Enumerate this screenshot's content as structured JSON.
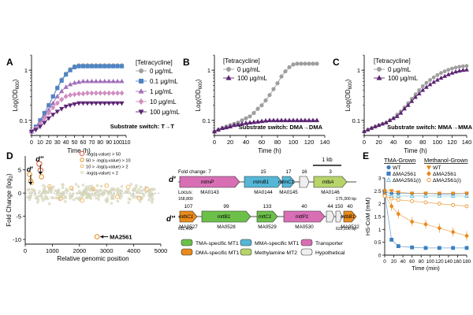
{
  "panel_letters": {
    "A": "A",
    "B": "B",
    "C": "C",
    "D": "D",
    "E": "E",
    "dp": "d′",
    "dpp": "d′′"
  },
  "colors": {
    "tma": "#3b7fbf",
    "dma": "#e88a1c",
    "mma": "#56b6d6",
    "transporter": "#d86fb4",
    "mt2": "#b6d46a",
    "hypo": "#eeeeee",
    "green": "#6cc04a",
    "gray": "#999999",
    "purple": "#5b2573",
    "p1": "#aaaaaa",
    "p2": "#4f84c4",
    "p3": "#a070b8",
    "p4": "#d08fc0"
  },
  "chart_data": [
    {
      "id": "A",
      "type": "line",
      "title": "Substrate switch: T→T",
      "xlabel": "Time (h)",
      "ylabel": "Log(OD600)",
      "xlim": [
        0,
        110
      ],
      "ylim_log": [
        0.05,
        2
      ],
      "xticks": [
        0,
        10,
        20,
        30,
        40,
        50,
        60,
        70,
        80,
        90,
        100,
        110
      ],
      "yticks": [
        {
          "v": 0.1,
          "label": "0.1"
        },
        {
          "v": 1,
          "label": "1"
        }
      ],
      "legend_title": "[Tetracycline]",
      "series": [
        {
          "name": "0 μg/mL",
          "marker": "circle",
          "color": "#9e9e9e",
          "x": [
            0,
            5,
            10,
            15,
            20,
            25,
            30,
            35,
            40,
            45,
            50,
            55,
            60,
            65,
            70,
            75,
            80,
            85,
            90,
            95,
            100,
            105
          ],
          "y": [
            0.06,
            0.075,
            0.1,
            0.14,
            0.2,
            0.3,
            0.45,
            0.65,
            0.85,
            1.05,
            1.2,
            1.25,
            1.25,
            1.25,
            1.25,
            1.25,
            1.25,
            1.25,
            1.25,
            1.25,
            1.25,
            1.25
          ]
        },
        {
          "name": "0.1 μg/mL",
          "marker": "square",
          "color": "#4f84c4",
          "x": [
            0,
            5,
            10,
            15,
            20,
            25,
            30,
            35,
            40,
            45,
            50,
            55,
            60,
            65,
            70,
            75,
            80,
            85,
            90,
            95,
            100,
            105
          ],
          "y": [
            0.06,
            0.075,
            0.1,
            0.14,
            0.2,
            0.3,
            0.44,
            0.62,
            0.82,
            1.0,
            1.15,
            1.2,
            1.2,
            1.2,
            1.2,
            1.2,
            1.2,
            1.2,
            1.2,
            1.2,
            1.2,
            1.2
          ]
        },
        {
          "name": "1 μg/mL",
          "marker": "triangle",
          "color": "#a070b8",
          "x": [
            0,
            5,
            10,
            15,
            20,
            25,
            30,
            35,
            40,
            45,
            50,
            55,
            60,
            65,
            70,
            75,
            80,
            85,
            90,
            95,
            100,
            105
          ],
          "y": [
            0.06,
            0.07,
            0.09,
            0.12,
            0.16,
            0.22,
            0.3,
            0.38,
            0.46,
            0.52,
            0.56,
            0.58,
            0.6,
            0.6,
            0.6,
            0.6,
            0.6,
            0.6,
            0.6,
            0.6,
            0.6,
            0.6
          ]
        },
        {
          "name": "10 μg/mL",
          "marker": "diamond",
          "color": "#d08fc0",
          "x": [
            0,
            5,
            10,
            15,
            20,
            25,
            30,
            35,
            40,
            45,
            50,
            55,
            60,
            65,
            70,
            75,
            80,
            85,
            90,
            95,
            100,
            105
          ],
          "y": [
            0.06,
            0.07,
            0.085,
            0.11,
            0.14,
            0.18,
            0.22,
            0.26,
            0.3,
            0.32,
            0.33,
            0.34,
            0.34,
            0.35,
            0.35,
            0.35,
            0.35,
            0.35,
            0.35,
            0.35,
            0.35,
            0.35
          ]
        },
        {
          "name": "100 μg/mL",
          "marker": "invtriangle",
          "color": "#5b2573",
          "x": [
            0,
            5,
            10,
            15,
            20,
            25,
            30,
            35,
            40,
            45,
            50,
            55,
            60,
            65,
            70,
            75,
            80,
            85,
            90,
            95,
            100,
            105
          ],
          "y": [
            0.06,
            0.065,
            0.075,
            0.09,
            0.11,
            0.13,
            0.15,
            0.17,
            0.19,
            0.2,
            0.21,
            0.22,
            0.22,
            0.22,
            0.22,
            0.22,
            0.22,
            0.22,
            0.22,
            0.22,
            0.22,
            0.22
          ]
        }
      ]
    },
    {
      "id": "B",
      "type": "line",
      "title": "Substrate switch: DMA→DMA",
      "xlabel": "Time (h)",
      "ylabel": "Log(OD600)",
      "xlim": [
        0,
        140
      ],
      "ylim_log": [
        0.05,
        2
      ],
      "xticks": [
        0,
        20,
        40,
        60,
        80,
        100,
        120,
        140
      ],
      "yticks": [
        {
          "v": 0.1,
          "label": "0.1"
        },
        {
          "v": 1,
          "label": "1"
        }
      ],
      "legend_title": "[Tetracycline]",
      "series": [
        {
          "name": "0 μg/mL",
          "marker": "circle",
          "color": "#9e9e9e",
          "x": [
            0,
            5,
            10,
            15,
            20,
            25,
            30,
            35,
            40,
            45,
            50,
            55,
            60,
            65,
            70,
            75,
            80,
            85,
            90,
            95,
            100,
            105,
            110,
            115,
            120,
            125,
            130
          ],
          "y": [
            0.06,
            0.065,
            0.07,
            0.075,
            0.08,
            0.085,
            0.09,
            0.1,
            0.11,
            0.12,
            0.14,
            0.17,
            0.2,
            0.25,
            0.32,
            0.42,
            0.55,
            0.75,
            0.95,
            1.15,
            1.3,
            1.35,
            1.35,
            1.35,
            1.35,
            1.35,
            1.35
          ]
        },
        {
          "name": "100 μg/mL",
          "marker": "triangle",
          "color": "#5b2573",
          "x": [
            0,
            5,
            10,
            15,
            20,
            25,
            30,
            35,
            40,
            45,
            50,
            55,
            60,
            65,
            70,
            75,
            80,
            85,
            90,
            95,
            100,
            105,
            110,
            115,
            120,
            125,
            130
          ],
          "y": [
            0.06,
            0.065,
            0.07,
            0.072,
            0.075,
            0.08,
            0.082,
            0.085,
            0.088,
            0.09,
            0.092,
            0.094,
            0.096,
            0.098,
            0.1,
            0.1,
            0.1,
            0.1,
            0.1,
            0.1,
            0.1,
            0.1,
            0.1,
            0.1,
            0.1,
            0.1,
            0.1
          ]
        }
      ]
    },
    {
      "id": "C",
      "type": "line",
      "title": "Substrate switch: MMA→MMA",
      "xlabel": "Time (h)",
      "ylabel": "Log(OD600)",
      "xlim": [
        0,
        140
      ],
      "ylim_log": [
        0.05,
        2
      ],
      "xticks": [
        0,
        20,
        40,
        60,
        80,
        100,
        120,
        140
      ],
      "yticks": [
        {
          "v": 0.1,
          "label": "0.1"
        },
        {
          "v": 1,
          "label": "1"
        }
      ],
      "legend_title": "[Tetracycline]",
      "series": [
        {
          "name": "0 μg/mL",
          "marker": "circle",
          "color": "#9e9e9e",
          "x": [
            0,
            5,
            10,
            15,
            20,
            25,
            30,
            35,
            40,
            45,
            50,
            55,
            60,
            65,
            70,
            75,
            80,
            85,
            90,
            95,
            100,
            105,
            110,
            115,
            120,
            125,
            130,
            135,
            140
          ],
          "y": [
            0.06,
            0.065,
            0.07,
            0.075,
            0.08,
            0.085,
            0.09,
            0.1,
            0.11,
            0.13,
            0.15,
            0.18,
            0.22,
            0.27,
            0.33,
            0.4,
            0.48,
            0.56,
            0.64,
            0.72,
            0.8,
            0.88,
            0.95,
            1.02,
            1.08,
            1.13,
            1.17,
            1.2,
            1.22
          ]
        },
        {
          "name": "100 μg/mL",
          "marker": "triangle",
          "color": "#5b2573",
          "x": [
            0,
            5,
            10,
            15,
            20,
            25,
            30,
            35,
            40,
            45,
            50,
            55,
            60,
            65,
            70,
            75,
            80,
            85,
            90,
            95,
            100,
            105,
            110,
            115,
            120,
            125,
            130,
            135,
            140
          ],
          "y": [
            0.06,
            0.065,
            0.07,
            0.075,
            0.08,
            0.085,
            0.09,
            0.1,
            0.11,
            0.12,
            0.14,
            0.17,
            0.2,
            0.24,
            0.29,
            0.34,
            0.4,
            0.46,
            0.52,
            0.58,
            0.64,
            0.7,
            0.76,
            0.82,
            0.88,
            0.93,
            0.97,
            1.0,
            1.02
          ]
        }
      ]
    },
    {
      "id": "D",
      "type": "scatter",
      "xlabel": "Relative genomic position",
      "ylabel": "Fold Change (log2)",
      "xlim": [
        0,
        5000
      ],
      "ylim": [
        -11,
        8
      ],
      "xticks": [
        0,
        1000,
        2000,
        3000,
        4000,
        5000
      ],
      "yticks": [
        -10,
        -5,
        0,
        5
      ],
      "legend": [
        {
          "label": "-log(q-value) > 50",
          "color": "#e05a3a",
          "size": 5
        },
        {
          "label": "50 > -log(q-value) > 10",
          "color": "#e88a1c",
          "size": 4
        },
        {
          "label": "10 > -log(q-value) > 2",
          "color": "#f1b766",
          "size": 3.2
        },
        {
          "label": "-log(q-value) < 2",
          "color": "#d8d8b8",
          "size": 2.6
        }
      ],
      "background_count": 260,
      "highlights": [
        {
          "x": 160,
          "y": 4,
          "cls": 1
        },
        {
          "x": 200,
          "y": 2.6,
          "cls": 1
        },
        {
          "x": 240,
          "y": 2.2,
          "cls": 2
        },
        {
          "x": 520,
          "y": 6.3,
          "cls": 0
        },
        {
          "x": 560,
          "y": 4.9,
          "cls": 0
        },
        {
          "x": 600,
          "y": 3.5,
          "cls": 1
        },
        {
          "x": 900,
          "y": 1.4,
          "cls": 2
        },
        {
          "x": 1300,
          "y": -1.2,
          "cls": 2
        },
        {
          "x": 1700,
          "y": 1.1,
          "cls": 2
        },
        {
          "x": 2100,
          "y": -1.6,
          "cls": 2
        },
        {
          "x": 2500,
          "y": 0.9,
          "cls": 2
        },
        {
          "x": 2650,
          "y": -9.4,
          "cls": 1
        },
        {
          "x": 3000,
          "y": 1.6,
          "cls": 2
        },
        {
          "x": 3400,
          "y": -0.8,
          "cls": 2
        },
        {
          "x": 3800,
          "y": 1.3,
          "cls": 2
        },
        {
          "x": 4200,
          "y": -1.1,
          "cls": 2
        },
        {
          "x": 4500,
          "y": 0.8,
          "cls": 2
        }
      ],
      "annotation": "MA2561",
      "markers": [
        "d′",
        "d′′"
      ]
    },
    {
      "id": "E",
      "type": "line",
      "xlabel": "Time (min)",
      "ylabel": "HS-CoM (mM)",
      "xlim": [
        0,
        180
      ],
      "ylim": [
        0,
        3
      ],
      "xticks": [
        0,
        20,
        40,
        60,
        80,
        100,
        120,
        140,
        160,
        180
      ],
      "yticks": [
        0,
        0.5,
        1,
        1.5,
        2,
        2.5,
        3
      ],
      "groups": [
        {
          "name": "TMA-Grown"
        },
        {
          "name": "Methanol-Grown"
        }
      ],
      "series": [
        {
          "name": "WT",
          "group": 0,
          "marker": "circle",
          "color": "#3b7fbf",
          "x": [
            0,
            15,
            30,
            60,
            90,
            120,
            150,
            180
          ],
          "y": [
            2.45,
            2.4,
            2.4,
            2.4,
            2.4,
            2.38,
            2.38,
            2.4
          ]
        },
        {
          "name": "ΔMA2561",
          "group": 0,
          "marker": "square",
          "color": "#3b7fbf",
          "x": [
            0,
            15,
            30,
            60,
            90,
            120,
            150,
            180
          ],
          "y": [
            2.4,
            0.6,
            0.35,
            0.3,
            0.28,
            0.28,
            0.28,
            0.28
          ]
        },
        {
          "name": "ΔMA2561(i)",
          "group": 0,
          "marker": "triangle",
          "color": "#56b6d6",
          "x": [
            0,
            15,
            30,
            60,
            90,
            120,
            150,
            180
          ],
          "y": [
            2.35,
            2.3,
            2.3,
            2.3,
            2.3,
            2.3,
            2.3,
            2.3
          ]
        },
        {
          "name": "WT",
          "group": 1,
          "marker": "invtriangle",
          "color": "#e88a1c",
          "x": [
            0,
            15,
            30,
            60,
            90,
            120,
            150,
            180
          ],
          "y": [
            2.5,
            2.5,
            2.45,
            2.4,
            2.4,
            2.4,
            2.4,
            2.4
          ]
        },
        {
          "name": "ΔMA2561",
          "group": 1,
          "marker": "diamond",
          "color": "#e88a1c",
          "x": [
            0,
            15,
            30,
            60,
            90,
            120,
            150,
            180
          ],
          "y": [
            2.35,
            1.9,
            1.6,
            1.3,
            1.2,
            1.05,
            0.9,
            0.75
          ]
        },
        {
          "name": "ΔMA2561(i)",
          "group": 1,
          "marker": "circle",
          "color": "#e88a1c",
          "x": [
            0,
            15,
            30,
            60,
            90,
            120,
            150,
            180
          ],
          "y": [
            2.3,
            2.2,
            2.15,
            2.1,
            2.05,
            2.0,
            1.95,
            1.9
          ]
        }
      ]
    }
  ],
  "gene_maps": {
    "scale_label": "1 kb",
    "fold_change_label": "Fold change:",
    "locus_label": "Locus:",
    "d1": {
      "genes": [
        {
          "name": "mtmP",
          "fc": "7",
          "locus": "MA0143",
          "cat": "transporter"
        },
        {
          "name": "mtmB1",
          "fc": "15",
          "locus": "MA0144",
          "cat": "mma"
        },
        {
          "name": "mtmC1",
          "fc": "17",
          "locus": "MA0145",
          "cat": "mma"
        },
        {
          "name": "",
          "fc": "16",
          "locus": "",
          "cat": "hypo"
        },
        {
          "name": "mtbA",
          "fc": "3",
          "locus": "MA0146",
          "cat": "mt2"
        }
      ],
      "coord_start": "168,800",
      "coord_end": "175,300 bp"
    },
    "d2": {
      "genes": [
        {
          "name": "mtbC1",
          "fc": "107",
          "locus": "MA0527",
          "cat": "dma"
        },
        {
          "name": "mttB1",
          "fc": "99",
          "locus": "MA0528",
          "cat": "tma"
        },
        {
          "name": "mttC1",
          "fc": "133",
          "locus": "MA0529",
          "cat": "tma"
        },
        {
          "name": "mttP1",
          "fc": "40",
          "locus": "MA0530",
          "cat": "transporter"
        },
        {
          "name": "",
          "fc": "44",
          "locus": "",
          "cat": "hypo"
        },
        {
          "name": "",
          "fc": "150",
          "locus": "",
          "cat": "hypo"
        },
        {
          "name": "mtbB1",
          "fc": "40",
          "locus": "MA0532",
          "cat": "dma"
        }
      ],
      "coord_start": "611,400",
      "coord_end": "622,100 bp"
    },
    "key": [
      {
        "label": "TMA-specific MT1",
        "cat": "tma"
      },
      {
        "label": "MMA-specific MT1",
        "cat": "mma"
      },
      {
        "label": "Transporter",
        "cat": "transporter"
      },
      {
        "label": "DMA-specific MT1",
        "cat": "dma"
      },
      {
        "label": "Methylamine MT2",
        "cat": "mt2"
      },
      {
        "label": "Hypothetical",
        "cat": "hypo"
      }
    ]
  }
}
